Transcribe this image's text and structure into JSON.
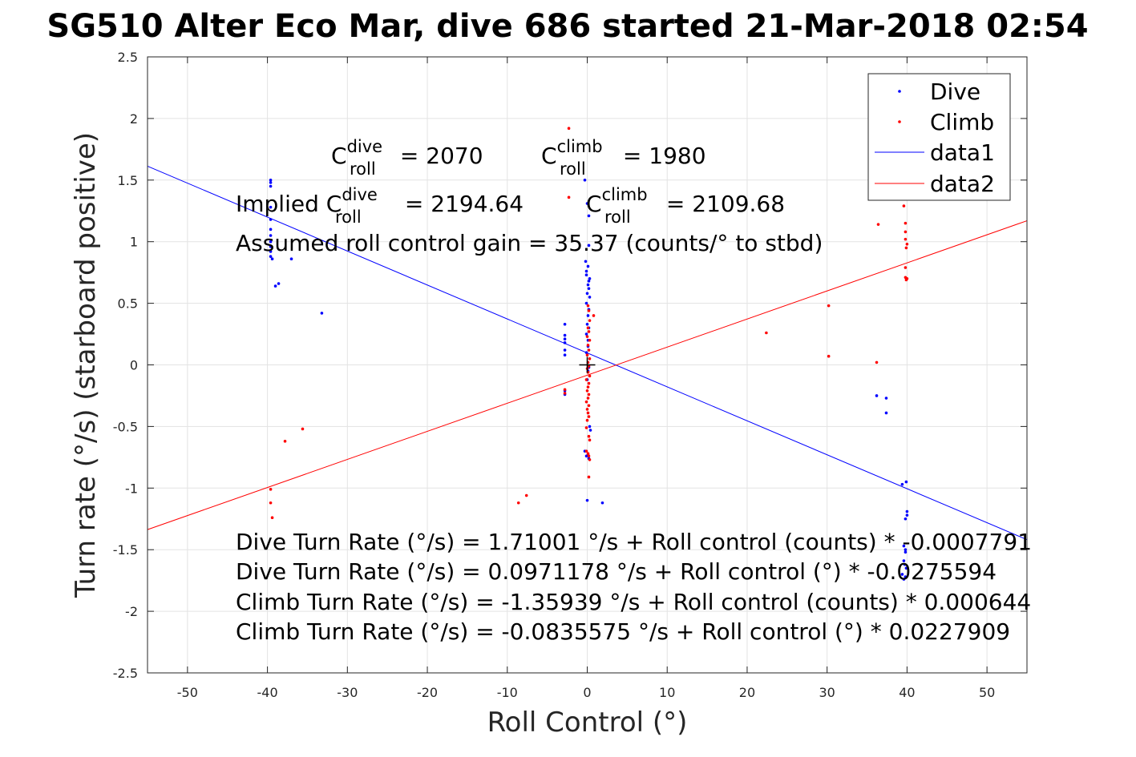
{
  "chart_data": {
    "type": "scatter",
    "title": "SG510 Alter Eco Mar, dive 686 started 21-Mar-2018 02:54",
    "xlabel": "Roll Control (°)",
    "ylabel": "Turn rate (°/s) (starboard positive)",
    "xlim": [
      -55,
      55
    ],
    "ylim": [
      -2.5,
      2.5
    ],
    "xticks": [
      -50,
      -40,
      -30,
      -20,
      -10,
      0,
      10,
      20,
      30,
      40,
      50
    ],
    "yticks": [
      2.5,
      2,
      1.5,
      1,
      0.5,
      0,
      -0.5,
      -1,
      -1.5,
      -2,
      -2.5
    ],
    "grid": true,
    "legend_position": "top-right",
    "series": [
      {
        "name": "Dive",
        "kind": "points",
        "color": "#0000ff",
        "points": [
          [
            -39.6,
            1.5
          ],
          [
            -39.6,
            1.48
          ],
          [
            -39.6,
            1.45
          ],
          [
            -39.6,
            1.28
          ],
          [
            -39.6,
            1.18
          ],
          [
            -39.6,
            1.1
          ],
          [
            -39.6,
            1.05
          ],
          [
            -39.6,
            1.0
          ],
          [
            -39.6,
            0.96
          ],
          [
            -39.6,
            0.92
          ],
          [
            -39.6,
            0.88
          ],
          [
            -39.4,
            0.86
          ],
          [
            -39.0,
            0.64
          ],
          [
            -38.6,
            0.66
          ],
          [
            -37.0,
            0.86
          ],
          [
            -33.2,
            0.42
          ],
          [
            -2.8,
            0.33
          ],
          [
            -2.8,
            0.24
          ],
          [
            -2.8,
            0.21
          ],
          [
            -2.8,
            0.18
          ],
          [
            -2.8,
            0.12
          ],
          [
            -2.8,
            0.08
          ],
          [
            -2.8,
            -0.21
          ],
          [
            -2.8,
            -0.24
          ],
          [
            -0.3,
            1.5
          ],
          [
            0.0,
            1.31
          ],
          [
            0.2,
            1.21
          ],
          [
            0.2,
            0.97
          ],
          [
            -0.2,
            0.84
          ],
          [
            0.1,
            0.8
          ],
          [
            -0.1,
            0.76
          ],
          [
            -0.1,
            0.73
          ],
          [
            0.3,
            0.7
          ],
          [
            0.2,
            0.68
          ],
          [
            0.1,
            0.65
          ],
          [
            0.2,
            0.62
          ],
          [
            0.0,
            0.58
          ],
          [
            0.3,
            0.55
          ],
          [
            -0.1,
            0.5
          ],
          [
            0.2,
            0.45
          ],
          [
            0.1,
            0.4
          ],
          [
            0.0,
            0.33
          ],
          [
            0.2,
            0.3
          ],
          [
            -0.1,
            0.25
          ],
          [
            0.1,
            0.2
          ],
          [
            0.1,
            0.15
          ],
          [
            -0.1,
            0.1
          ],
          [
            0.2,
            -0.02
          ],
          [
            0.1,
            -0.05
          ],
          [
            0.0,
            -0.12
          ],
          [
            0.3,
            -0.5
          ],
          [
            0.4,
            -0.53
          ],
          [
            -0.3,
            -0.7
          ],
          [
            -0.1,
            -0.74
          ],
          [
            0.1,
            -0.73
          ],
          [
            0.2,
            -0.76
          ],
          [
            0.0,
            -1.1
          ],
          [
            1.9,
            -1.12
          ],
          [
            36.2,
            -0.25
          ],
          [
            37.4,
            -0.27
          ],
          [
            37.4,
            -0.39
          ],
          [
            39.4,
            -0.97
          ],
          [
            39.9,
            -0.95
          ],
          [
            40.0,
            -1.19
          ],
          [
            40.0,
            -1.22
          ],
          [
            39.8,
            -1.25
          ],
          [
            39.6,
            -1.47
          ],
          [
            39.8,
            -1.5
          ],
          [
            39.8,
            -1.52
          ],
          [
            39.6,
            -1.59
          ],
          [
            39.7,
            -1.62
          ],
          [
            39.9,
            -1.65
          ],
          [
            39.4,
            -1.7
          ],
          [
            39.8,
            -1.72
          ],
          [
            39.6,
            -1.74
          ]
        ]
      },
      {
        "name": "Climb",
        "kind": "points",
        "color": "#ff0000",
        "points": [
          [
            -2.3,
            1.92
          ],
          [
            -2.3,
            1.36
          ],
          [
            -39.6,
            -1.01
          ],
          [
            -39.6,
            -1.12
          ],
          [
            -39.4,
            -1.24
          ],
          [
            -37.8,
            -0.62
          ],
          [
            -35.6,
            -0.52
          ],
          [
            -8.6,
            -1.12
          ],
          [
            -7.6,
            -1.06
          ],
          [
            -2.8,
            -0.2
          ],
          [
            -2.8,
            -0.23
          ],
          [
            0.1,
            0.48
          ],
          [
            0.8,
            0.4
          ],
          [
            0.2,
            0.44
          ],
          [
            0.3,
            0.36
          ],
          [
            0.1,
            0.3
          ],
          [
            0.2,
            0.27
          ],
          [
            0.0,
            0.23
          ],
          [
            0.3,
            0.2
          ],
          [
            0.1,
            0.16
          ],
          [
            0.2,
            0.12
          ],
          [
            0.0,
            0.08
          ],
          [
            0.3,
            0.05
          ],
          [
            0.1,
            0.02
          ],
          [
            0.2,
            -0.01
          ],
          [
            0.0,
            -0.03
          ],
          [
            0.1,
            -0.06
          ],
          [
            0.3,
            -0.09
          ],
          [
            -0.1,
            -0.12
          ],
          [
            0.2,
            -0.15
          ],
          [
            0.1,
            -0.18
          ],
          [
            0.0,
            -0.21
          ],
          [
            0.2,
            -0.24
          ],
          [
            0.1,
            -0.27
          ],
          [
            -0.1,
            -0.3
          ],
          [
            0.2,
            -0.33
          ],
          [
            0.0,
            -0.36
          ],
          [
            0.1,
            -0.39
          ],
          [
            0.2,
            -0.42
          ],
          [
            0.0,
            -0.45
          ],
          [
            -0.1,
            -0.51
          ],
          [
            0.2,
            -0.58
          ],
          [
            0.3,
            -0.61
          ],
          [
            -0.1,
            -0.7
          ],
          [
            0.1,
            -0.72
          ],
          [
            0.2,
            -0.74
          ],
          [
            0.3,
            -0.77
          ],
          [
            0.2,
            -0.91
          ],
          [
            22.4,
            0.26
          ],
          [
            30.2,
            0.48
          ],
          [
            30.2,
            0.07
          ],
          [
            36.2,
            0.02
          ],
          [
            36.4,
            1.14
          ],
          [
            39.6,
            1.29
          ],
          [
            39.8,
            1.15
          ],
          [
            39.8,
            1.08
          ],
          [
            39.8,
            1.02
          ],
          [
            40.0,
            0.98
          ],
          [
            39.9,
            0.95
          ],
          [
            39.8,
            0.79
          ],
          [
            39.8,
            0.71
          ],
          [
            40.0,
            0.7
          ],
          [
            39.9,
            0.69
          ]
        ]
      },
      {
        "name": "data1",
        "kind": "line",
        "color": "#0000ff",
        "points": [
          [
            -55,
            1.6128
          ],
          [
            55,
            -1.4186
          ]
        ]
      },
      {
        "name": "data2",
        "kind": "line",
        "color": "#ff0000",
        "points": [
          [
            -55,
            -1.337
          ],
          [
            55,
            1.1699
          ]
        ]
      }
    ],
    "legend": [
      "Dive",
      "Climb",
      "data1",
      "data2"
    ],
    "annotations": {
      "c_roll_dive_prefix": "C",
      "c_roll_dive_sup": "dive",
      "c_roll_dive_sub": "roll",
      "c_roll_dive_value": " = 2070",
      "c_roll_climb_prefix": "C",
      "c_roll_climb_sup": "climb",
      "c_roll_climb_sub": "roll",
      "c_roll_climb_value": " = 1980",
      "implied_prefix": "Implied C",
      "implied_dive_sup": "dive",
      "implied_dive_sub": "roll",
      "implied_dive_value": " = 2194.64",
      "implied_climb_prefix": "C",
      "implied_climb_sup": "climb",
      "implied_climb_sub": "roll",
      "implied_climb_value": " = 2109.68",
      "gain": "Assumed roll control gain = 35.37 (counts/° to stbd)",
      "fit_lines": [
        "Dive Turn Rate (°/s) = 1.71001 °/s + Roll control (counts) * -0.0007791",
        "Dive Turn Rate (°/s) = 0.0971178 °/s + Roll control (°) * -0.0275594",
        "Climb Turn Rate (°/s) = -1.35939 °/s + Roll control (counts) * 0.000644",
        "Climb Turn Rate (°/s) = -0.0835575 °/s + Roll control (°) * 0.0227909"
      ]
    }
  }
}
